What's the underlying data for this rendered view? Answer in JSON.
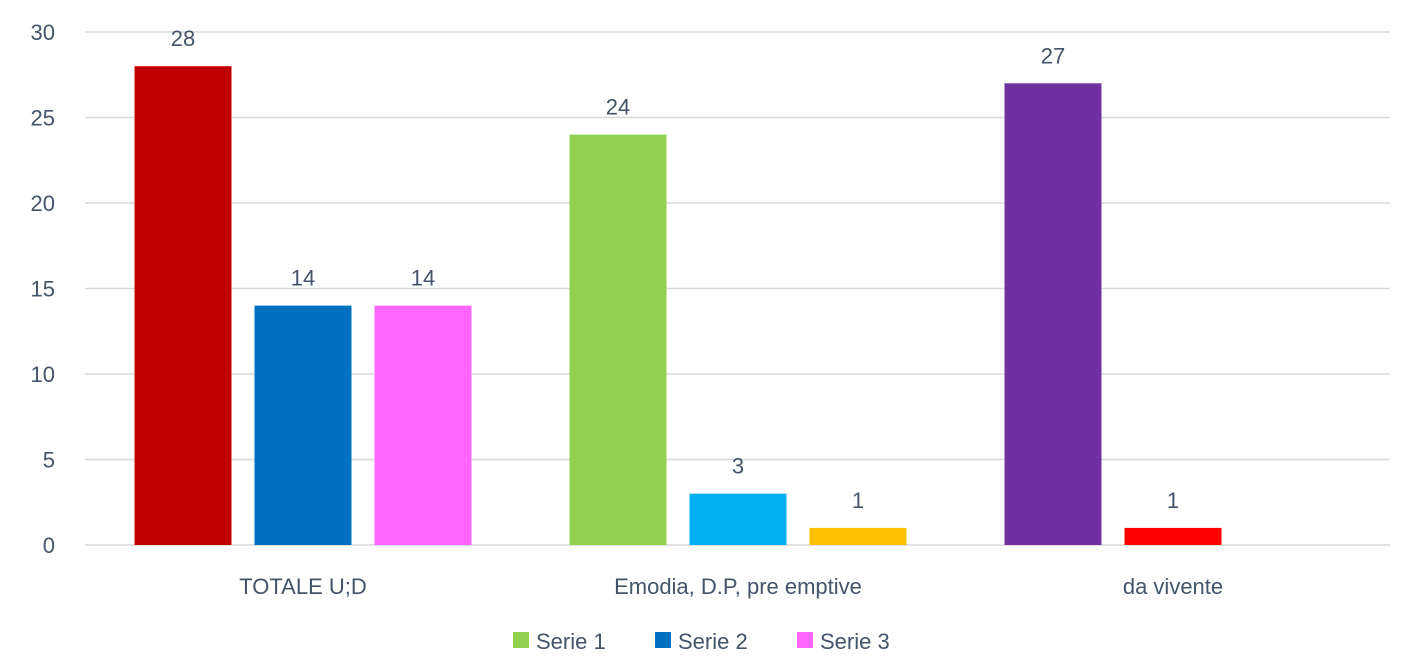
{
  "chart_data": {
    "type": "bar",
    "title": "",
    "xlabel": "",
    "ylabel": "",
    "ylim": [
      0,
      30
    ],
    "yticks": [
      0,
      5,
      10,
      15,
      20,
      25,
      30
    ],
    "grid": true,
    "legend_position": "bottom",
    "categories": [
      "TOTALE U;D",
      "Emodia, D.P, pre emptive",
      "da vivente"
    ],
    "series": [
      {
        "name": "Serie 1",
        "values": [
          28,
          24,
          27
        ]
      },
      {
        "name": "Serie 2",
        "values": [
          14,
          3,
          1
        ]
      },
      {
        "name": "Serie 3",
        "values": [
          14,
          1,
          null
        ]
      }
    ],
    "bar_colors": [
      [
        "#c00000",
        "#0070c0",
        "#ff66ff"
      ],
      [
        "#92d050",
        "#00b0f0",
        "#ffc000"
      ],
      [
        "#7030a0",
        "#ff0000",
        null
      ]
    ],
    "legend": [
      {
        "name": "Serie 1",
        "color": "#92d050"
      },
      {
        "name": "Serie 2",
        "color": "#0070c0"
      },
      {
        "name": "Serie 3",
        "color": "#ff66ff"
      }
    ]
  }
}
